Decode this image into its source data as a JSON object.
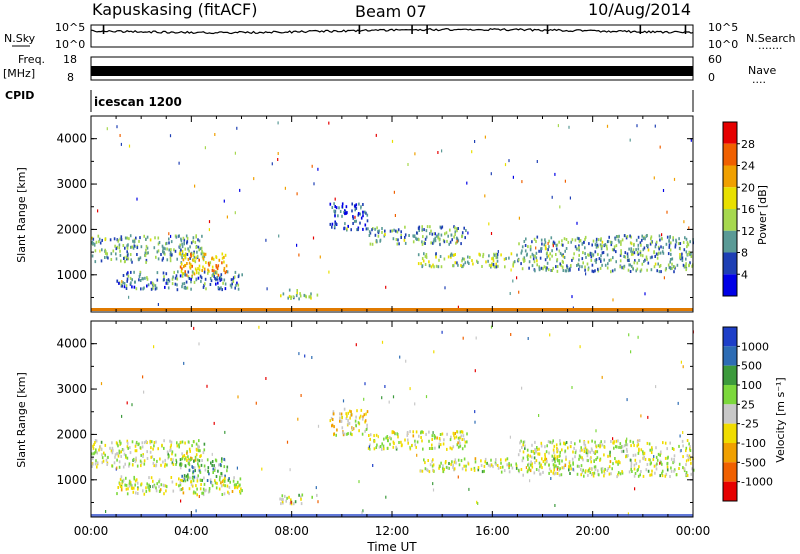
{
  "header": {
    "station": "Kapuskasing (fitACF)",
    "beam": "Beam 07",
    "date": "10/Aug/2014"
  },
  "sky_panel": {
    "left_label": "N.Sky",
    "right_label": "N.Search",
    "right_dots": "·······",
    "tick_top": "10^5",
    "tick_bottom": "10^0"
  },
  "freq_panel": {
    "left_label_1": "Freq.",
    "left_label_2": "[MHz]",
    "right_label": "Nave",
    "right_dots": "····",
    "left_tick_top": "18",
    "left_tick_bottom": "8",
    "right_tick_top": "60",
    "right_tick_bottom": "0"
  },
  "cpid_panel": {
    "label": "CPID",
    "value": "icescan 1200"
  },
  "time_axis": {
    "label": "Time UT",
    "ticks": [
      "00:00",
      "04:00",
      "08:00",
      "12:00",
      "16:00",
      "20:00",
      "00:00"
    ]
  },
  "range_axis": {
    "label": "Slant Range [km]",
    "ticks": [
      "1000",
      "2000",
      "3000",
      "4000"
    ]
  },
  "colors": {
    "power_scale": [
      "#0000e6",
      "#1e3fb4",
      "#5a9a96",
      "#a6d84e",
      "#e8e000",
      "#f0a000",
      "#f06000",
      "#e60000"
    ],
    "velocity_scale": [
      "#1e3fc8",
      "#2d6cb4",
      "#3c9a3c",
      "#7cd83c",
      "#c8c8c8",
      "#f0dc00",
      "#f0a000",
      "#f06000",
      "#e60000"
    ]
  },
  "chart_data": [
    {
      "type": "heatmap",
      "title": "Power",
      "xlabel": "Time UT",
      "ylabel": "Slant Range [km]",
      "xlim": [
        "00:00",
        "24:00"
      ],
      "ylim": [
        180,
        4500
      ],
      "colorbar": {
        "label": "Power [dB]",
        "ticks": [
          "4",
          "8",
          "12",
          "16",
          "20",
          "24",
          "28"
        ],
        "range": [
          0,
          30
        ]
      },
      "scatter_regions": [
        {
          "hours": [
            0,
            4.5
          ],
          "range_km": [
            1300,
            1900
          ],
          "value": 10
        },
        {
          "hours": [
            3.5,
            5.5
          ],
          "range_km": [
            1000,
            1500
          ],
          "value": 20
        },
        {
          "hours": [
            1,
            6
          ],
          "range_km": [
            700,
            1100
          ],
          "value": 8
        },
        {
          "hours": [
            7.5,
            9
          ],
          "range_km": [
            500,
            700
          ],
          "value": 12
        },
        {
          "hours": [
            9.5,
            11
          ],
          "range_km": [
            2000,
            2600
          ],
          "value": 6
        },
        {
          "hours": [
            11,
            15
          ],
          "range_km": [
            1700,
            2100
          ],
          "value": 10
        },
        {
          "hours": [
            13,
            17
          ],
          "range_km": [
            1200,
            1500
          ],
          "value": 12
        },
        {
          "hours": [
            17,
            24
          ],
          "range_km": [
            1100,
            1900
          ],
          "value": 10
        }
      ]
    },
    {
      "type": "heatmap",
      "title": "Velocity",
      "xlabel": "Time UT",
      "ylabel": "Slant Range [km]",
      "xlim": [
        "00:00",
        "24:00"
      ],
      "ylim": [
        180,
        4500
      ],
      "colorbar": {
        "label": "Velocity [m s⁻¹]",
        "ticks": [
          "1000",
          "500",
          "100",
          "25",
          "-25",
          "-100",
          "-500",
          "-1000"
        ],
        "range": [
          -1000,
          1000
        ]
      },
      "scatter_regions": [
        {
          "hours": [
            0,
            4.5
          ],
          "range_km": [
            1300,
            1900
          ],
          "value": 0
        },
        {
          "hours": [
            3.5,
            5.5
          ],
          "range_km": [
            1000,
            1500
          ],
          "value": 300
        },
        {
          "hours": [
            1,
            6
          ],
          "range_km": [
            700,
            1100
          ],
          "value": 0
        },
        {
          "hours": [
            7.5,
            9
          ],
          "range_km": [
            500,
            700
          ],
          "value": 80
        },
        {
          "hours": [
            9.5,
            11
          ],
          "range_km": [
            2000,
            2600
          ],
          "value": -150
        },
        {
          "hours": [
            11,
            15
          ],
          "range_km": [
            1700,
            2100
          ],
          "value": 0
        },
        {
          "hours": [
            13,
            17
          ],
          "range_km": [
            1200,
            1500
          ],
          "value": 0
        },
        {
          "hours": [
            17,
            24
          ],
          "range_km": [
            1100,
            1900
          ],
          "value": 0
        }
      ]
    }
  ]
}
